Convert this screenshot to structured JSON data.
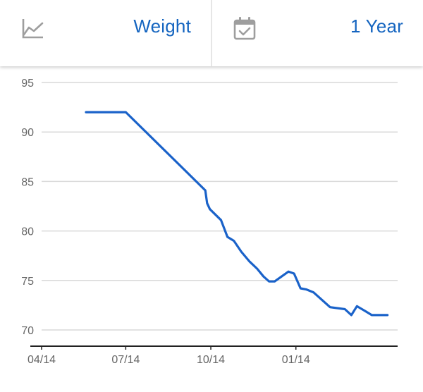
{
  "header": {
    "metric": {
      "icon": "line-chart-icon",
      "label": "Weight"
    },
    "range": {
      "icon": "calendar-check-icon",
      "label": "1 Year"
    }
  },
  "colors": {
    "accent": "#1565c0",
    "line": "#1a62c9",
    "grid": "#d9d9d9",
    "axis": "#222222",
    "tick_text": "#666666",
    "icon": "#9e9e9e"
  },
  "chart_data": {
    "type": "line",
    "title": "",
    "xlabel": "",
    "ylabel": "",
    "ylim": [
      70,
      95
    ],
    "yticks": [
      70,
      75,
      80,
      85,
      90,
      95
    ],
    "xlim": [
      "2014-04-14",
      "2015-05-04"
    ],
    "xticks": [
      {
        "label": "04/14",
        "date": "2014-04-14"
      },
      {
        "label": "07/14",
        "date": "2014-07-14"
      },
      {
        "label": "10/14",
        "date": "2014-10-14"
      },
      {
        "label": "01/14",
        "date": "2015-01-14"
      }
    ],
    "grid": true,
    "series": [
      {
        "name": "",
        "points": [
          {
            "x": "2014-06-01",
            "y": 92.0
          },
          {
            "x": "2014-07-14",
            "y": 92.0
          },
          {
            "x": "2014-10-08",
            "y": 84.1
          },
          {
            "x": "2014-10-10",
            "y": 82.8
          },
          {
            "x": "2014-10-13",
            "y": 82.2
          },
          {
            "x": "2014-10-25",
            "y": 81.1
          },
          {
            "x": "2014-11-01",
            "y": 79.4
          },
          {
            "x": "2014-11-08",
            "y": 79.0
          },
          {
            "x": "2014-11-16",
            "y": 77.9
          },
          {
            "x": "2014-11-25",
            "y": 76.9
          },
          {
            "x": "2014-12-03",
            "y": 76.2
          },
          {
            "x": "2014-12-10",
            "y": 75.4
          },
          {
            "x": "2014-12-16",
            "y": 74.9
          },
          {
            "x": "2014-12-22",
            "y": 74.9
          },
          {
            "x": "2015-01-06",
            "y": 75.9
          },
          {
            "x": "2015-01-12",
            "y": 75.7
          },
          {
            "x": "2015-01-19",
            "y": 74.2
          },
          {
            "x": "2015-01-25",
            "y": 74.1
          },
          {
            "x": "2015-02-02",
            "y": 73.8
          },
          {
            "x": "2015-02-20",
            "y": 72.3
          },
          {
            "x": "2015-03-08",
            "y": 72.1
          },
          {
            "x": "2015-03-15",
            "y": 71.5
          },
          {
            "x": "2015-03-21",
            "y": 72.4
          },
          {
            "x": "2015-03-30",
            "y": 71.9
          },
          {
            "x": "2015-04-06",
            "y": 71.5
          },
          {
            "x": "2015-04-23",
            "y": 71.5
          }
        ]
      }
    ]
  }
}
